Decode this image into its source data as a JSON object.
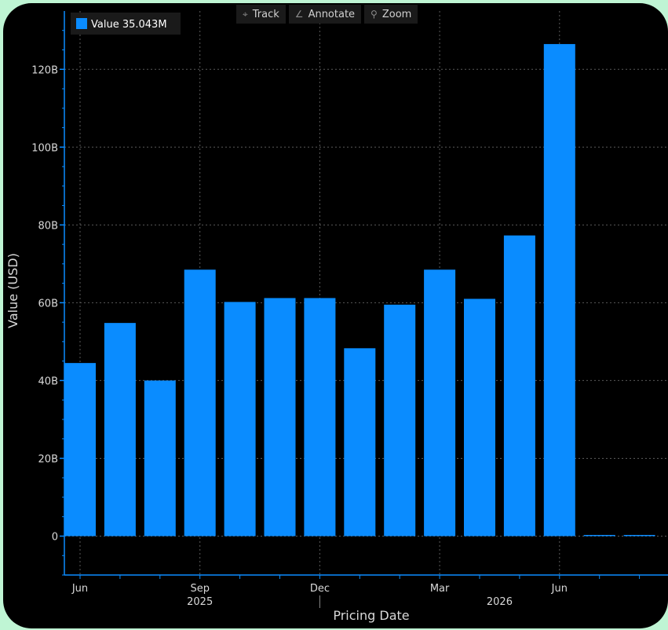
{
  "legend": {
    "label": "Value 35.043M",
    "color": "#0a8cff"
  },
  "toolbar": [
    {
      "label": "Track",
      "icon": "crosshair-icon",
      "glyph": "⌖"
    },
    {
      "label": "Annotate",
      "icon": "pencil-icon",
      "glyph": "∠"
    },
    {
      "label": "Zoom",
      "icon": "magnifier-icon",
      "glyph": "⚲"
    }
  ],
  "chart_data": {
    "type": "bar",
    "ylabel": "Value (USD)",
    "xlabel": "Pricing Date",
    "ylim": [
      -10,
      135
    ],
    "y_ticks": [
      {
        "value": 0,
        "label": "0"
      },
      {
        "value": 20,
        "label": "20B"
      },
      {
        "value": 40,
        "label": "40B"
      },
      {
        "value": 60,
        "label": "60B"
      },
      {
        "value": 80,
        "label": "80B"
      },
      {
        "value": 100,
        "label": "100B"
      },
      {
        "value": 120,
        "label": "120B"
      }
    ],
    "x_ticks": [
      {
        "label": "Jun",
        "index": 0
      },
      {
        "label": "Sep",
        "index": 3
      },
      {
        "label": "Dec",
        "index": 6
      },
      {
        "label": "Mar",
        "index": 9
      },
      {
        "label": "Jun",
        "index": 12
      }
    ],
    "year_labels": [
      {
        "label": "2025",
        "index": 3
      },
      {
        "label": "2026",
        "index": 10.5
      }
    ],
    "year_divider_index": 6,
    "categories": [
      "Jun 2025",
      "Jul 2025",
      "Aug 2025",
      "Sep 2025",
      "Oct 2025",
      "Nov 2025",
      "Dec 2025",
      "Jan 2026",
      "Feb 2026",
      "Mar 2026",
      "Apr 2026",
      "May 2026",
      "Jun 2026",
      "Jul 2026",
      "Aug 2026"
    ],
    "values": [
      44.5,
      54.8,
      40.0,
      68.5,
      60.2,
      61.2,
      61.2,
      48.3,
      59.5,
      68.5,
      61.0,
      77.3,
      126.5,
      0.035,
      0.035
    ],
    "unit": "B",
    "bar_color": "#0a8cff",
    "grid": true
  }
}
